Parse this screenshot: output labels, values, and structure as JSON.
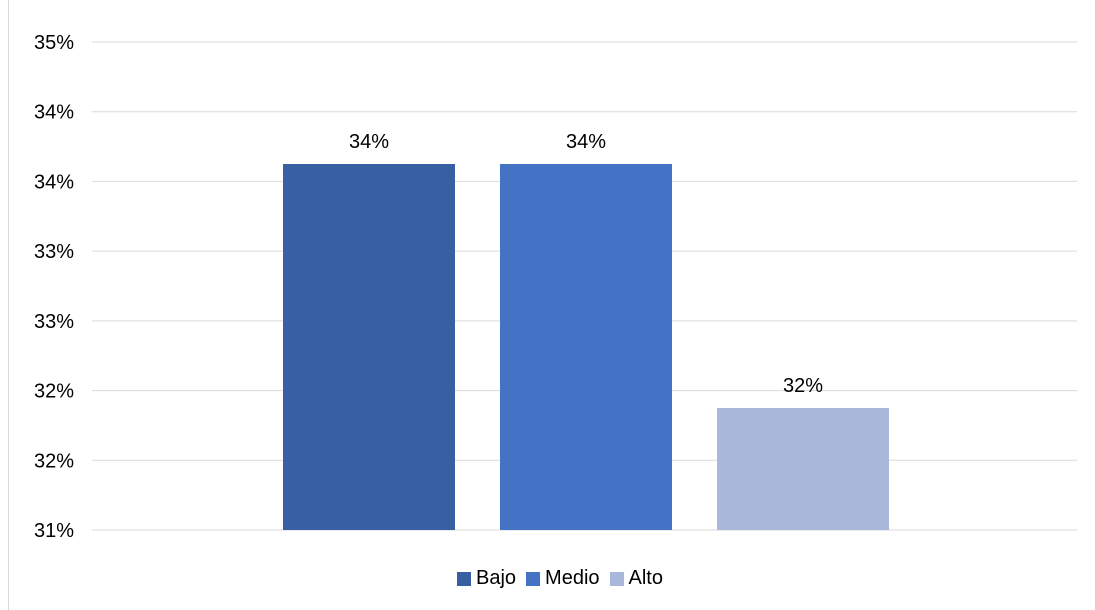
{
  "chart_data": {
    "type": "bar",
    "categories": [
      "Bajo",
      "Medio",
      "Alto"
    ],
    "values": [
      34,
      34,
      32
    ],
    "data_labels": [
      "34%",
      "34%",
      "32%"
    ],
    "colors": [
      "#375fa2",
      "#4472c4",
      "#a8b7da"
    ],
    "y_ticks": [
      "35%",
      "34%",
      "34%",
      "33%",
      "33%",
      "32%",
      "32%",
      "31%"
    ],
    "ylim": [
      31,
      35
    ],
    "grid": true,
    "legend_position": "bottom",
    "legend": [
      "Bajo",
      "Medio",
      "Alto"
    ]
  }
}
